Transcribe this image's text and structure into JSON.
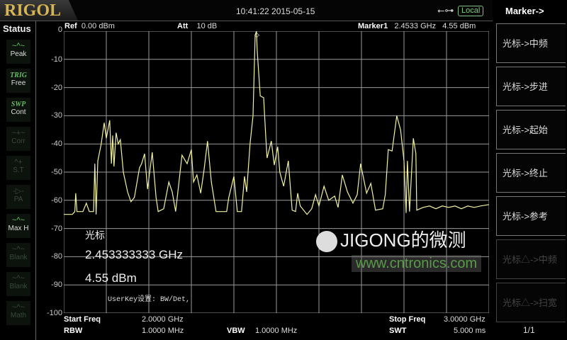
{
  "header": {
    "logo": "RIGOL",
    "datetime": "10:41:22 2015-05-15",
    "usb_icon": "usb-icon",
    "remote_status": "Local"
  },
  "status": {
    "title": "Status",
    "items": [
      {
        "icon": "~^~",
        "label": "Peak",
        "active": true
      },
      {
        "tag": "TRIG",
        "label": "Free",
        "active": true
      },
      {
        "tag": "SWP",
        "label": "Cont",
        "active": true
      },
      {
        "icon": "~+~",
        "label": "Corr",
        "active": false
      },
      {
        "icon": "^+",
        "label": "S.T",
        "active": false
      },
      {
        "icon": "-▷-",
        "label": "PA",
        "active": false
      },
      {
        "icon": "~^~",
        "label": "Max H",
        "active": true
      },
      {
        "icon": "~^~",
        "label": "Blank",
        "active": false
      },
      {
        "icon": "~^~",
        "label": "Blank",
        "active": false
      },
      {
        "icon": "~^~",
        "label": "Math",
        "active": false
      }
    ]
  },
  "display": {
    "ref_label": "Ref",
    "ref_value": "0.00 dBm",
    "att_label": "Att",
    "att_value": "10 dB",
    "marker_label": "Marker1",
    "marker_freq": "2.4533 GHz",
    "marker_level": "4.55 dBm"
  },
  "marker_readout": {
    "title": "光标",
    "freq": "2.453333333 GHz",
    "level": "4.55 dBm"
  },
  "userkey": "UserKey设置:  BW/Det,",
  "footer": {
    "start_label": "Start Freq",
    "start_value": "2.0000 GHz",
    "stop_label": "Stop Freq",
    "stop_value": "3.0000 GHz",
    "rbw_label": "RBW",
    "rbw_value": "1.0000 MHz",
    "vbw_label": "VBW",
    "vbw_value": "1.0000 MHz",
    "swt_label": "SWT",
    "swt_value": "5.000 ms"
  },
  "menu": {
    "title": "Marker->",
    "items": [
      {
        "label": "光标->中频",
        "enabled": true
      },
      {
        "label": "光标->步进",
        "enabled": true
      },
      {
        "label": "光标->起始",
        "enabled": true
      },
      {
        "label": "光标->终止",
        "enabled": true
      },
      {
        "label": "光标->参考",
        "enabled": true
      },
      {
        "label": "光标△->中频",
        "enabled": false
      },
      {
        "label": "光标△->扫宽",
        "enabled": false
      }
    ],
    "page": "1/1"
  },
  "watermark": {
    "text": "JIGONG的微测",
    "url": "www.cntronics.com"
  },
  "colors": {
    "trace": "#f2f2a0",
    "grid": "#9a9a9a",
    "accent_green": "#7fcf7f",
    "logo": "#d7b552"
  },
  "chart_data": {
    "type": "line",
    "xlim": [
      2.0,
      3.0
    ],
    "ylim": [
      -100,
      0
    ],
    "x_unit": "GHz",
    "y_unit": "dBm",
    "y_ticks": [
      "0",
      "-10",
      "-20",
      "-30",
      "-40",
      "-50",
      "-60",
      "-70",
      "-80",
      "-90",
      "-100"
    ],
    "grid": true,
    "points": [
      [
        2.0,
        -65
      ],
      [
        2.02,
        -65
      ],
      [
        2.026,
        -64
      ],
      [
        2.028,
        -57.5
      ],
      [
        2.031,
        -64
      ],
      [
        2.045,
        -64
      ],
      [
        2.053,
        -61
      ],
      [
        2.06,
        -64
      ],
      [
        2.07,
        -64
      ],
      [
        2.073,
        -47
      ],
      [
        2.076,
        -65
      ],
      [
        2.08,
        -46
      ],
      [
        2.088,
        -40
      ],
      [
        2.095,
        -32.5
      ],
      [
        2.1,
        -38
      ],
      [
        2.108,
        -31.6
      ],
      [
        2.112,
        -47
      ],
      [
        2.115,
        -37
      ],
      [
        2.118,
        -48
      ],
      [
        2.123,
        -36
      ],
      [
        2.128,
        -40
      ],
      [
        2.133,
        -38.5
      ],
      [
        2.14,
        -50
      ],
      [
        2.15,
        -57
      ],
      [
        2.158,
        -60.5
      ],
      [
        2.166,
        -59
      ],
      [
        2.178,
        -48.5
      ],
      [
        2.183,
        -47
      ],
      [
        2.19,
        -43.5
      ],
      [
        2.197,
        -56
      ],
      [
        2.208,
        -43
      ],
      [
        2.217,
        -59
      ],
      [
        2.222,
        -64
      ],
      [
        2.235,
        -63
      ],
      [
        2.247,
        -53.5
      ],
      [
        2.255,
        -57
      ],
      [
        2.263,
        -64
      ],
      [
        2.278,
        -44
      ],
      [
        2.29,
        -47
      ],
      [
        2.3,
        -42
      ],
      [
        2.305,
        -53.5
      ],
      [
        2.313,
        -51
      ],
      [
        2.322,
        -57.5
      ],
      [
        2.33,
        -49
      ],
      [
        2.338,
        -39
      ],
      [
        2.347,
        -53.5
      ],
      [
        2.358,
        -64
      ],
      [
        2.383,
        -64
      ],
      [
        2.388,
        -59
      ],
      [
        2.4,
        -51.5
      ],
      [
        2.408,
        -64
      ],
      [
        2.418,
        -64
      ],
      [
        2.425,
        -51.5
      ],
      [
        2.43,
        -57
      ],
      [
        2.438,
        -40
      ],
      [
        2.445,
        -30
      ],
      [
        2.45,
        -1.5
      ],
      [
        2.453,
        0
      ],
      [
        2.455,
        -7.3
      ],
      [
        2.462,
        -23
      ],
      [
        2.47,
        -23.6
      ],
      [
        2.475,
        -37.5
      ],
      [
        2.478,
        -45
      ],
      [
        2.488,
        -39
      ],
      [
        2.495,
        -47.5
      ],
      [
        2.503,
        -41
      ],
      [
        2.508,
        -50
      ],
      [
        2.517,
        -55
      ],
      [
        2.528,
        -46
      ],
      [
        2.537,
        -63.5
      ],
      [
        2.545,
        -64
      ],
      [
        2.55,
        -57.5
      ],
      [
        2.556,
        -62
      ],
      [
        2.572,
        -65
      ],
      [
        2.583,
        -63
      ],
      [
        2.592,
        -58
      ],
      [
        2.6,
        -62
      ],
      [
        2.612,
        -55
      ],
      [
        2.623,
        -60
      ],
      [
        2.637,
        -58.5
      ],
      [
        2.645,
        -62.5
      ],
      [
        2.655,
        -51
      ],
      [
        2.667,
        -57
      ],
      [
        2.68,
        -61
      ],
      [
        2.69,
        -58
      ],
      [
        2.698,
        -47
      ],
      [
        2.712,
        -57.5
      ],
      [
        2.722,
        -54
      ],
      [
        2.733,
        -63.5
      ],
      [
        2.75,
        -63
      ],
      [
        2.756,
        -58
      ],
      [
        2.763,
        -42
      ],
      [
        2.772,
        -42.5
      ],
      [
        2.783,
        -30
      ],
      [
        2.792,
        -35
      ],
      [
        2.8,
        -46
      ],
      [
        2.805,
        -64.5
      ],
      [
        2.808,
        -46
      ],
      [
        2.813,
        -64
      ],
      [
        2.822,
        -38
      ],
      [
        2.828,
        -43.5
      ],
      [
        2.83,
        -63.5
      ],
      [
        2.845,
        -62.5
      ],
      [
        2.86,
        -62
      ],
      [
        2.875,
        -63
      ],
      [
        2.89,
        -62
      ],
      [
        2.905,
        -62.5
      ],
      [
        2.92,
        -62
      ],
      [
        2.935,
        -63
      ],
      [
        2.95,
        -62
      ],
      [
        2.965,
        -62.5
      ],
      [
        2.98,
        -62
      ],
      [
        3.0,
        -61.5
      ]
    ]
  }
}
